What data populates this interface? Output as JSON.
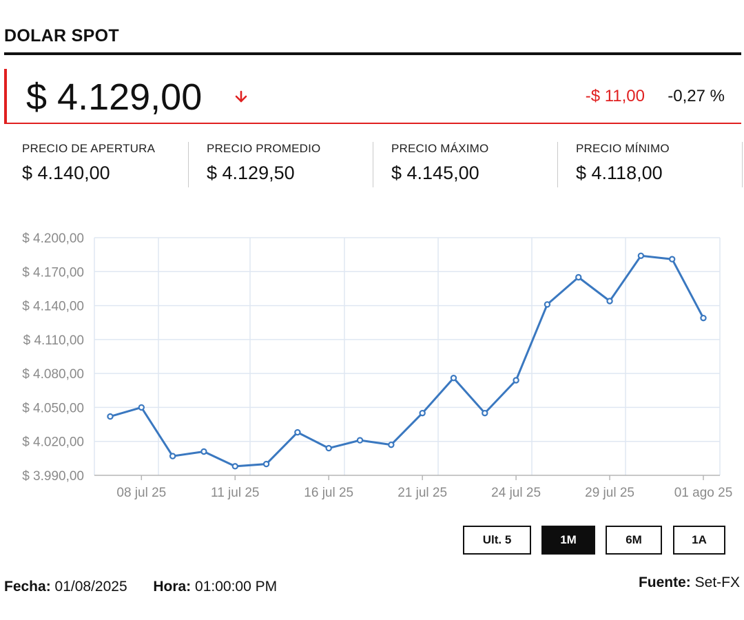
{
  "title": "DOLAR SPOT",
  "price": {
    "value": "$ 4.129,00",
    "direction_icon": "arrow-down-icon",
    "change_abs": "-$ 11,00",
    "change_pct": "-0,27 %"
  },
  "stats": [
    {
      "label": "PRECIO DE APERTURA",
      "value": "$ 4.140,00"
    },
    {
      "label": "PRECIO PROMEDIO",
      "value": "$ 4.129,50"
    },
    {
      "label": "PRECIO MÁXIMO",
      "value": "$ 4.145,00"
    },
    {
      "label": "PRECIO MÍNIMO",
      "value": "$ 4.118,00"
    }
  ],
  "colors": {
    "accent_red": "#e02020",
    "line": "#3a78c0",
    "grid": "#dfe7f2",
    "active_button": "#0d0d0d"
  },
  "chart_data": {
    "type": "line",
    "title": "",
    "xlabel": "",
    "ylabel": "",
    "x_tick_labels": [
      "08 jul 25",
      "11 jul 25",
      "16 jul 25",
      "21 jul 25",
      "24 jul 25",
      "29 jul 25",
      "01 ago 25"
    ],
    "y_tick_labels": [
      "$ 4.200,00",
      "$ 4.170,00",
      "$ 4.140,00",
      "$ 4.110,00",
      "$ 4.080,00",
      "$ 4.050,00",
      "$ 4.020,00",
      "$ 3.990,00"
    ],
    "ylim": [
      3990,
      4200
    ],
    "grid": true,
    "series": [
      {
        "values": [
          4042,
          4050,
          4007,
          4011,
          3998,
          4000,
          4028,
          4014,
          4021,
          4017,
          4045,
          4076,
          4045,
          4074,
          4141,
          4165,
          4144,
          4184,
          4181,
          4129
        ]
      }
    ]
  },
  "range_buttons": [
    {
      "label": "Ult. 5",
      "active": false
    },
    {
      "label": "1M",
      "active": true
    },
    {
      "label": "6M",
      "active": false
    },
    {
      "label": "1A",
      "active": false
    }
  ],
  "footer": {
    "fecha_label": "Fecha:",
    "fecha_value": "01/08/2025",
    "hora_label": "Hora:",
    "hora_value": "01:00:00 PM",
    "fuente_label": "Fuente:",
    "fuente_value": "Set-FX"
  }
}
